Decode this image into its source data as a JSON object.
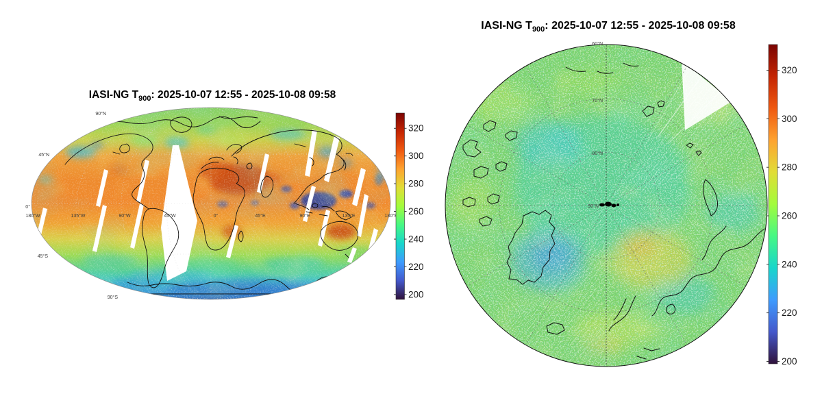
{
  "figure": {
    "background": "#ffffff",
    "description": "Two-panel satellite sounding figure: global map and north polar map of IASI-NG brightness temperature at 900 hPa"
  },
  "chart_data": [
    {
      "type": "heatmap",
      "panel": "global-map",
      "projection": "global ellipse (Hammer-like) with white satellite swath gaps",
      "title_prefix": "IASI-NG T",
      "title_subscript": "900",
      "title_suffix": ": 2025-10-07 12:55 - 2025-10-08 09:58",
      "colorbar": {
        "orientation": "vertical",
        "colormap": "turbo",
        "ticks": [
          320,
          300,
          280,
          260,
          240,
          220,
          200
        ],
        "vmin": 196.5,
        "vmax": 331
      },
      "lat_labels": [
        "90°N",
        "45°N",
        "0°",
        "45°S",
        "90°S"
      ],
      "lon_labels": [
        "180°W",
        "135°W",
        "90°W",
        "45°W",
        "0°",
        "45°E",
        "90°E",
        "135°E",
        "180°E"
      ],
      "estimated_values_K": {
        "sahara_arabia_hot_spot": 312,
        "australia_interior": 308,
        "tropical_belt": 296,
        "midlatitudes": 272,
        "north_polar_band": 258,
        "southern_ocean": 250,
        "antarctica": 228,
        "deep_convective_clouds_indonesia": 215
      }
    },
    {
      "type": "heatmap",
      "panel": "north-polar-map",
      "projection": "north polar azimuthal, boundary near 60°N, dashed graticule every 10° / 30°",
      "title_prefix": "IASI-NG T",
      "title_subscript": "900",
      "title_suffix": ": 2025-10-07 12:55 - 2025-10-08 09:58",
      "colorbar": {
        "orientation": "vertical",
        "colormap": "turbo",
        "ticks": [
          320,
          300,
          280,
          260,
          240,
          220,
          200
        ],
        "vmin": 199,
        "vmax": 330.6
      },
      "lat_labels": [
        "60°N",
        "70°N",
        "80°N",
        "90°N"
      ],
      "estimated_values_K": {
        "central_arctic_ocean": 258,
        "greenland_ice_sheet": 246,
        "norwegian_barents_sea": 276,
        "land_periphery": 268
      }
    }
  ],
  "colormap_stops": [
    {
      "t": 1.0,
      "color": "#7a0403"
    },
    {
      "t": 0.9,
      "color": "#c42503"
    },
    {
      "t": 0.8,
      "color": "#ef5911"
    },
    {
      "t": 0.7,
      "color": "#fea330"
    },
    {
      "t": 0.6,
      "color": "#e1dd37"
    },
    {
      "t": 0.5,
      "color": "#a2fc3c"
    },
    {
      "t": 0.4,
      "color": "#46f884"
    },
    {
      "t": 0.3,
      "color": "#18d6cb"
    },
    {
      "t": 0.2,
      "color": "#3e9bfe"
    },
    {
      "t": 0.1,
      "color": "#4458cb"
    },
    {
      "t": 0.0,
      "color": "#30123b"
    }
  ]
}
